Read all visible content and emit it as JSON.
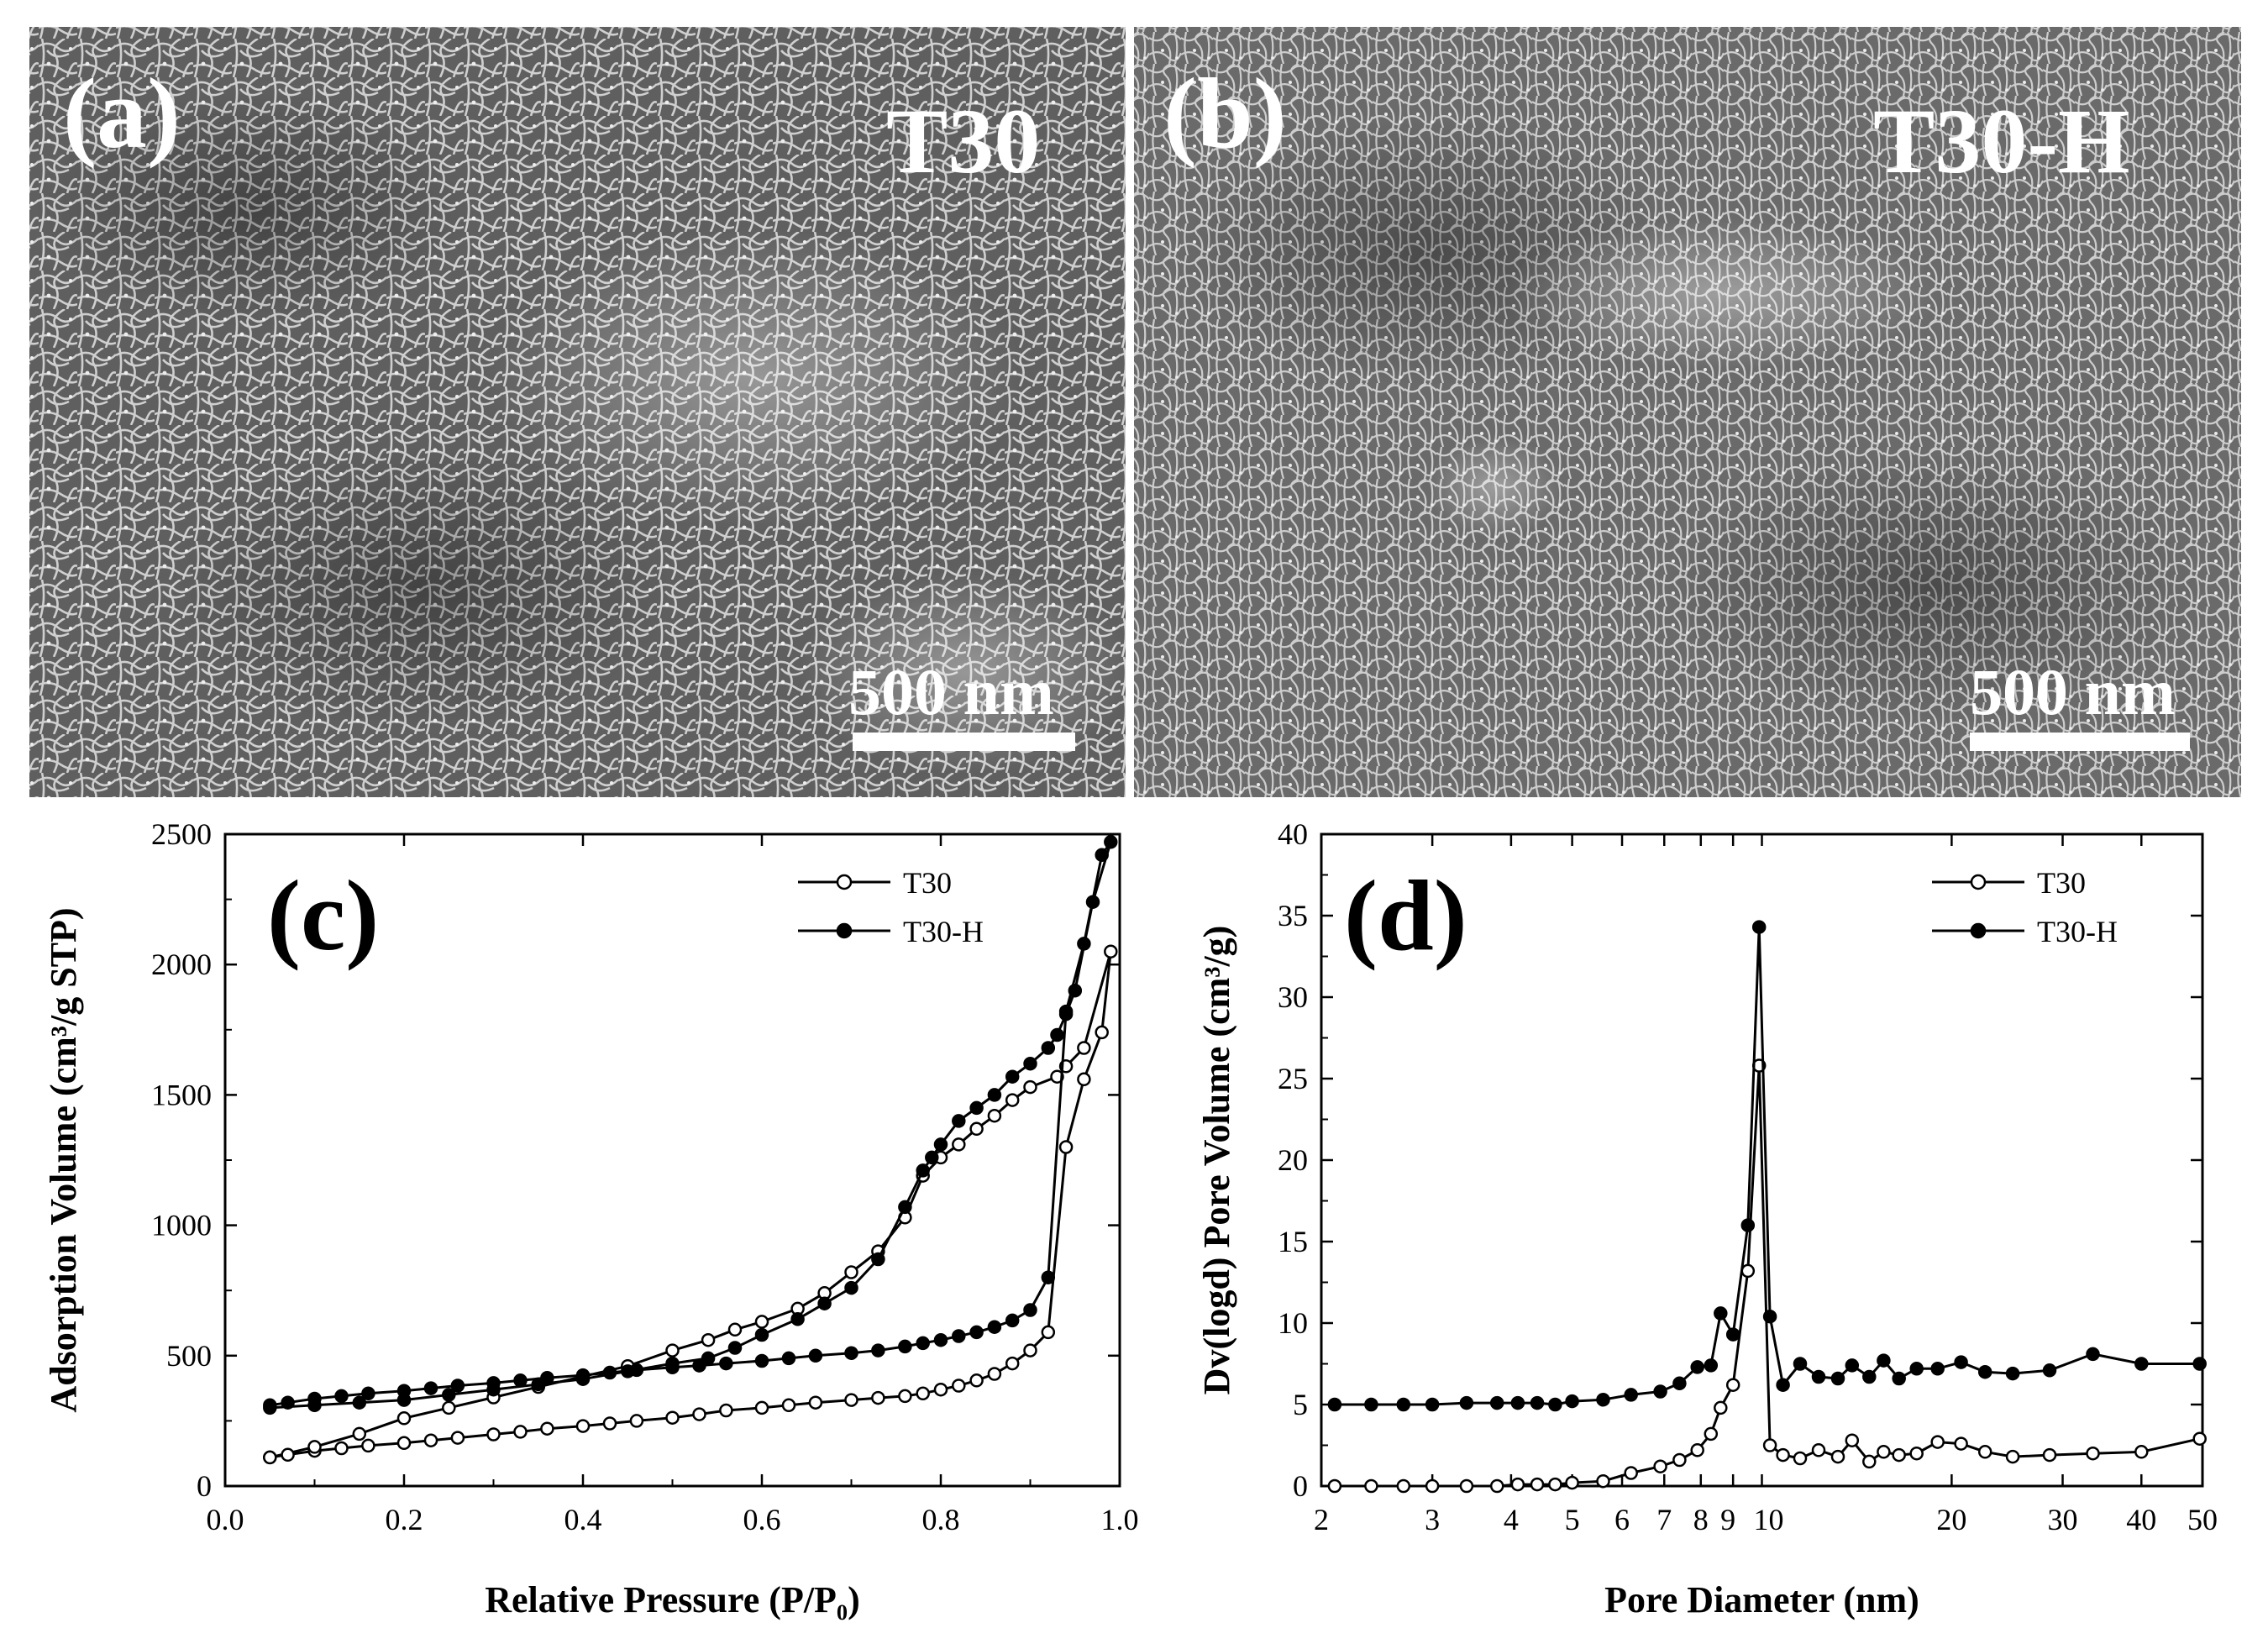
{
  "panels": {
    "a": {
      "letter": "(a)",
      "sample": "T30",
      "scale_bar": "500 nm"
    },
    "b": {
      "letter": "(b)",
      "sample": "T30-H",
      "scale_bar": "500 nm"
    }
  },
  "colors": {
    "sem_background": "#6b6b6b",
    "sem_fiber": "#d8d8d8",
    "line": "#000000",
    "open_marker": "#ffffff"
  },
  "chart_data": [
    {
      "panel": "(c)",
      "type": "line",
      "xlabel": "Relative Pressure (P/P₀)",
      "ylabel": "Adsorption Volume (cm³/g STP)",
      "xlim": [
        0.0,
        1.0
      ],
      "ylim": [
        0,
        2500
      ],
      "x_ticks": [
        "0.0",
        "0.2",
        "0.4",
        "0.6",
        "0.8",
        "1.0"
      ],
      "y_ticks": [
        "0",
        "500",
        "1000",
        "1500",
        "2000",
        "2500"
      ],
      "legend_position": "top-right",
      "series": [
        {
          "name": "T30",
          "marker": "open",
          "x": [
            0.05,
            0.07,
            0.1,
            0.13,
            0.16,
            0.2,
            0.23,
            0.26,
            0.3,
            0.33,
            0.36,
            0.4,
            0.43,
            0.46,
            0.5,
            0.53,
            0.56,
            0.6,
            0.63,
            0.66,
            0.7,
            0.73,
            0.76,
            0.78,
            0.8,
            0.82,
            0.84,
            0.86,
            0.88,
            0.9,
            0.92,
            0.94,
            0.96,
            0.98,
            0.99,
            0.96,
            0.94,
            0.93,
            0.9,
            0.88,
            0.86,
            0.84,
            0.82,
            0.8,
            0.78,
            0.76,
            0.73,
            0.7,
            0.67,
            0.64,
            0.6,
            0.57,
            0.54,
            0.5,
            0.45,
            0.4,
            0.35,
            0.3,
            0.25,
            0.2,
            0.15,
            0.1,
            0.05
          ],
          "y": [
            110,
            120,
            135,
            145,
            155,
            165,
            175,
            185,
            198,
            208,
            220,
            230,
            240,
            250,
            262,
            275,
            290,
            300,
            310,
            320,
            330,
            338,
            345,
            355,
            370,
            385,
            405,
            430,
            470,
            520,
            590,
            1300,
            1560,
            1740,
            2050,
            1680,
            1610,
            1570,
            1530,
            1480,
            1420,
            1370,
            1310,
            1260,
            1190,
            1030,
            900,
            820,
            740,
            680,
            630,
            600,
            560,
            520,
            460,
            420,
            380,
            340,
            300,
            260,
            200,
            150,
            110
          ]
        },
        {
          "name": "T30-H",
          "marker": "filled",
          "x": [
            0.05,
            0.07,
            0.1,
            0.13,
            0.16,
            0.2,
            0.23,
            0.26,
            0.3,
            0.33,
            0.36,
            0.4,
            0.43,
            0.46,
            0.5,
            0.53,
            0.56,
            0.6,
            0.63,
            0.66,
            0.7,
            0.73,
            0.76,
            0.78,
            0.8,
            0.82,
            0.84,
            0.86,
            0.88,
            0.9,
            0.92,
            0.94,
            0.96,
            0.98,
            0.99,
            0.97,
            0.95,
            0.94,
            0.93,
            0.92,
            0.9,
            0.88,
            0.86,
            0.84,
            0.82,
            0.8,
            0.79,
            0.78,
            0.76,
            0.73,
            0.7,
            0.67,
            0.64,
            0.6,
            0.57,
            0.54,
            0.5,
            0.45,
            0.4,
            0.35,
            0.3,
            0.25,
            0.2,
            0.15,
            0.1,
            0.05
          ],
          "y": [
            310,
            320,
            335,
            345,
            355,
            365,
            375,
            385,
            395,
            405,
            415,
            425,
            435,
            445,
            455,
            462,
            470,
            480,
            490,
            500,
            510,
            520,
            535,
            548,
            560,
            575,
            590,
            610,
            635,
            675,
            800,
            1820,
            2080,
            2420,
            2470,
            2240,
            1900,
            1810,
            1730,
            1680,
            1620,
            1570,
            1500,
            1450,
            1400,
            1310,
            1260,
            1210,
            1070,
            870,
            760,
            700,
            640,
            580,
            530,
            490,
            470,
            440,
            410,
            390,
            370,
            350,
            330,
            320,
            310,
            300
          ]
        }
      ]
    },
    {
      "panel": "(d)",
      "type": "line",
      "xlabel": "Pore Diameter (nm)",
      "ylabel": "Dv(logd) Pore Volume (cm³/g)",
      "x_scale": "log",
      "xlim": [
        2,
        50
      ],
      "ylim": [
        0,
        40
      ],
      "x_ticks": [
        "2",
        "3",
        "4",
        "5",
        "6",
        "7",
        "8",
        "9",
        "10",
        "20",
        "30",
        "40",
        "50"
      ],
      "y_ticks": [
        "0",
        "5",
        "10",
        "15",
        "20",
        "25",
        "30",
        "35",
        "40"
      ],
      "legend_position": "top-right",
      "series": [
        {
          "name": "T30",
          "marker": "open",
          "x": [
            2.1,
            2.4,
            2.7,
            3.0,
            3.4,
            3.8,
            4.1,
            4.4,
            4.7,
            5.0,
            5.6,
            6.2,
            6.9,
            7.4,
            7.9,
            8.3,
            8.6,
            9.0,
            9.5,
            9.9,
            10.3,
            10.8,
            11.5,
            12.3,
            13.2,
            13.9,
            14.8,
            15.6,
            16.5,
            17.6,
            19.0,
            20.7,
            22.6,
            25.0,
            28.6,
            33.5,
            40.0,
            49.5
          ],
          "y": [
            0,
            0,
            0,
            0,
            0,
            0,
            0.1,
            0.1,
            0.1,
            0.2,
            0.3,
            0.8,
            1.2,
            1.6,
            2.2,
            3.2,
            4.8,
            6.2,
            13.2,
            25.8,
            2.5,
            1.9,
            1.7,
            2.2,
            1.8,
            2.8,
            1.5,
            2.1,
            1.9,
            2.0,
            2.7,
            2.6,
            2.1,
            1.8,
            1.9,
            2.0,
            2.1,
            2.9
          ]
        },
        {
          "name": "T30-H",
          "marker": "filled",
          "x": [
            2.1,
            2.4,
            2.7,
            3.0,
            3.4,
            3.8,
            4.1,
            4.4,
            4.7,
            5.0,
            5.6,
            6.2,
            6.9,
            7.4,
            7.9,
            8.3,
            8.6,
            9.0,
            9.5,
            9.9,
            10.3,
            10.8,
            11.5,
            12.3,
            13.2,
            13.9,
            14.8,
            15.6,
            16.5,
            17.6,
            19.0,
            20.7,
            22.6,
            25.0,
            28.6,
            33.5,
            40.0,
            49.5
          ],
          "y": [
            5,
            5,
            5,
            5,
            5.1,
            5.1,
            5.1,
            5.1,
            5,
            5.2,
            5.3,
            5.6,
            5.8,
            6.3,
            7.3,
            7.4,
            10.6,
            9.3,
            16.0,
            34.3,
            10.4,
            6.2,
            7.5,
            6.7,
            6.6,
            7.4,
            6.7,
            7.7,
            6.6,
            7.2,
            7.2,
            7.6,
            7.0,
            6.9,
            7.1,
            8.1,
            7.5,
            7.5
          ]
        }
      ]
    }
  ]
}
